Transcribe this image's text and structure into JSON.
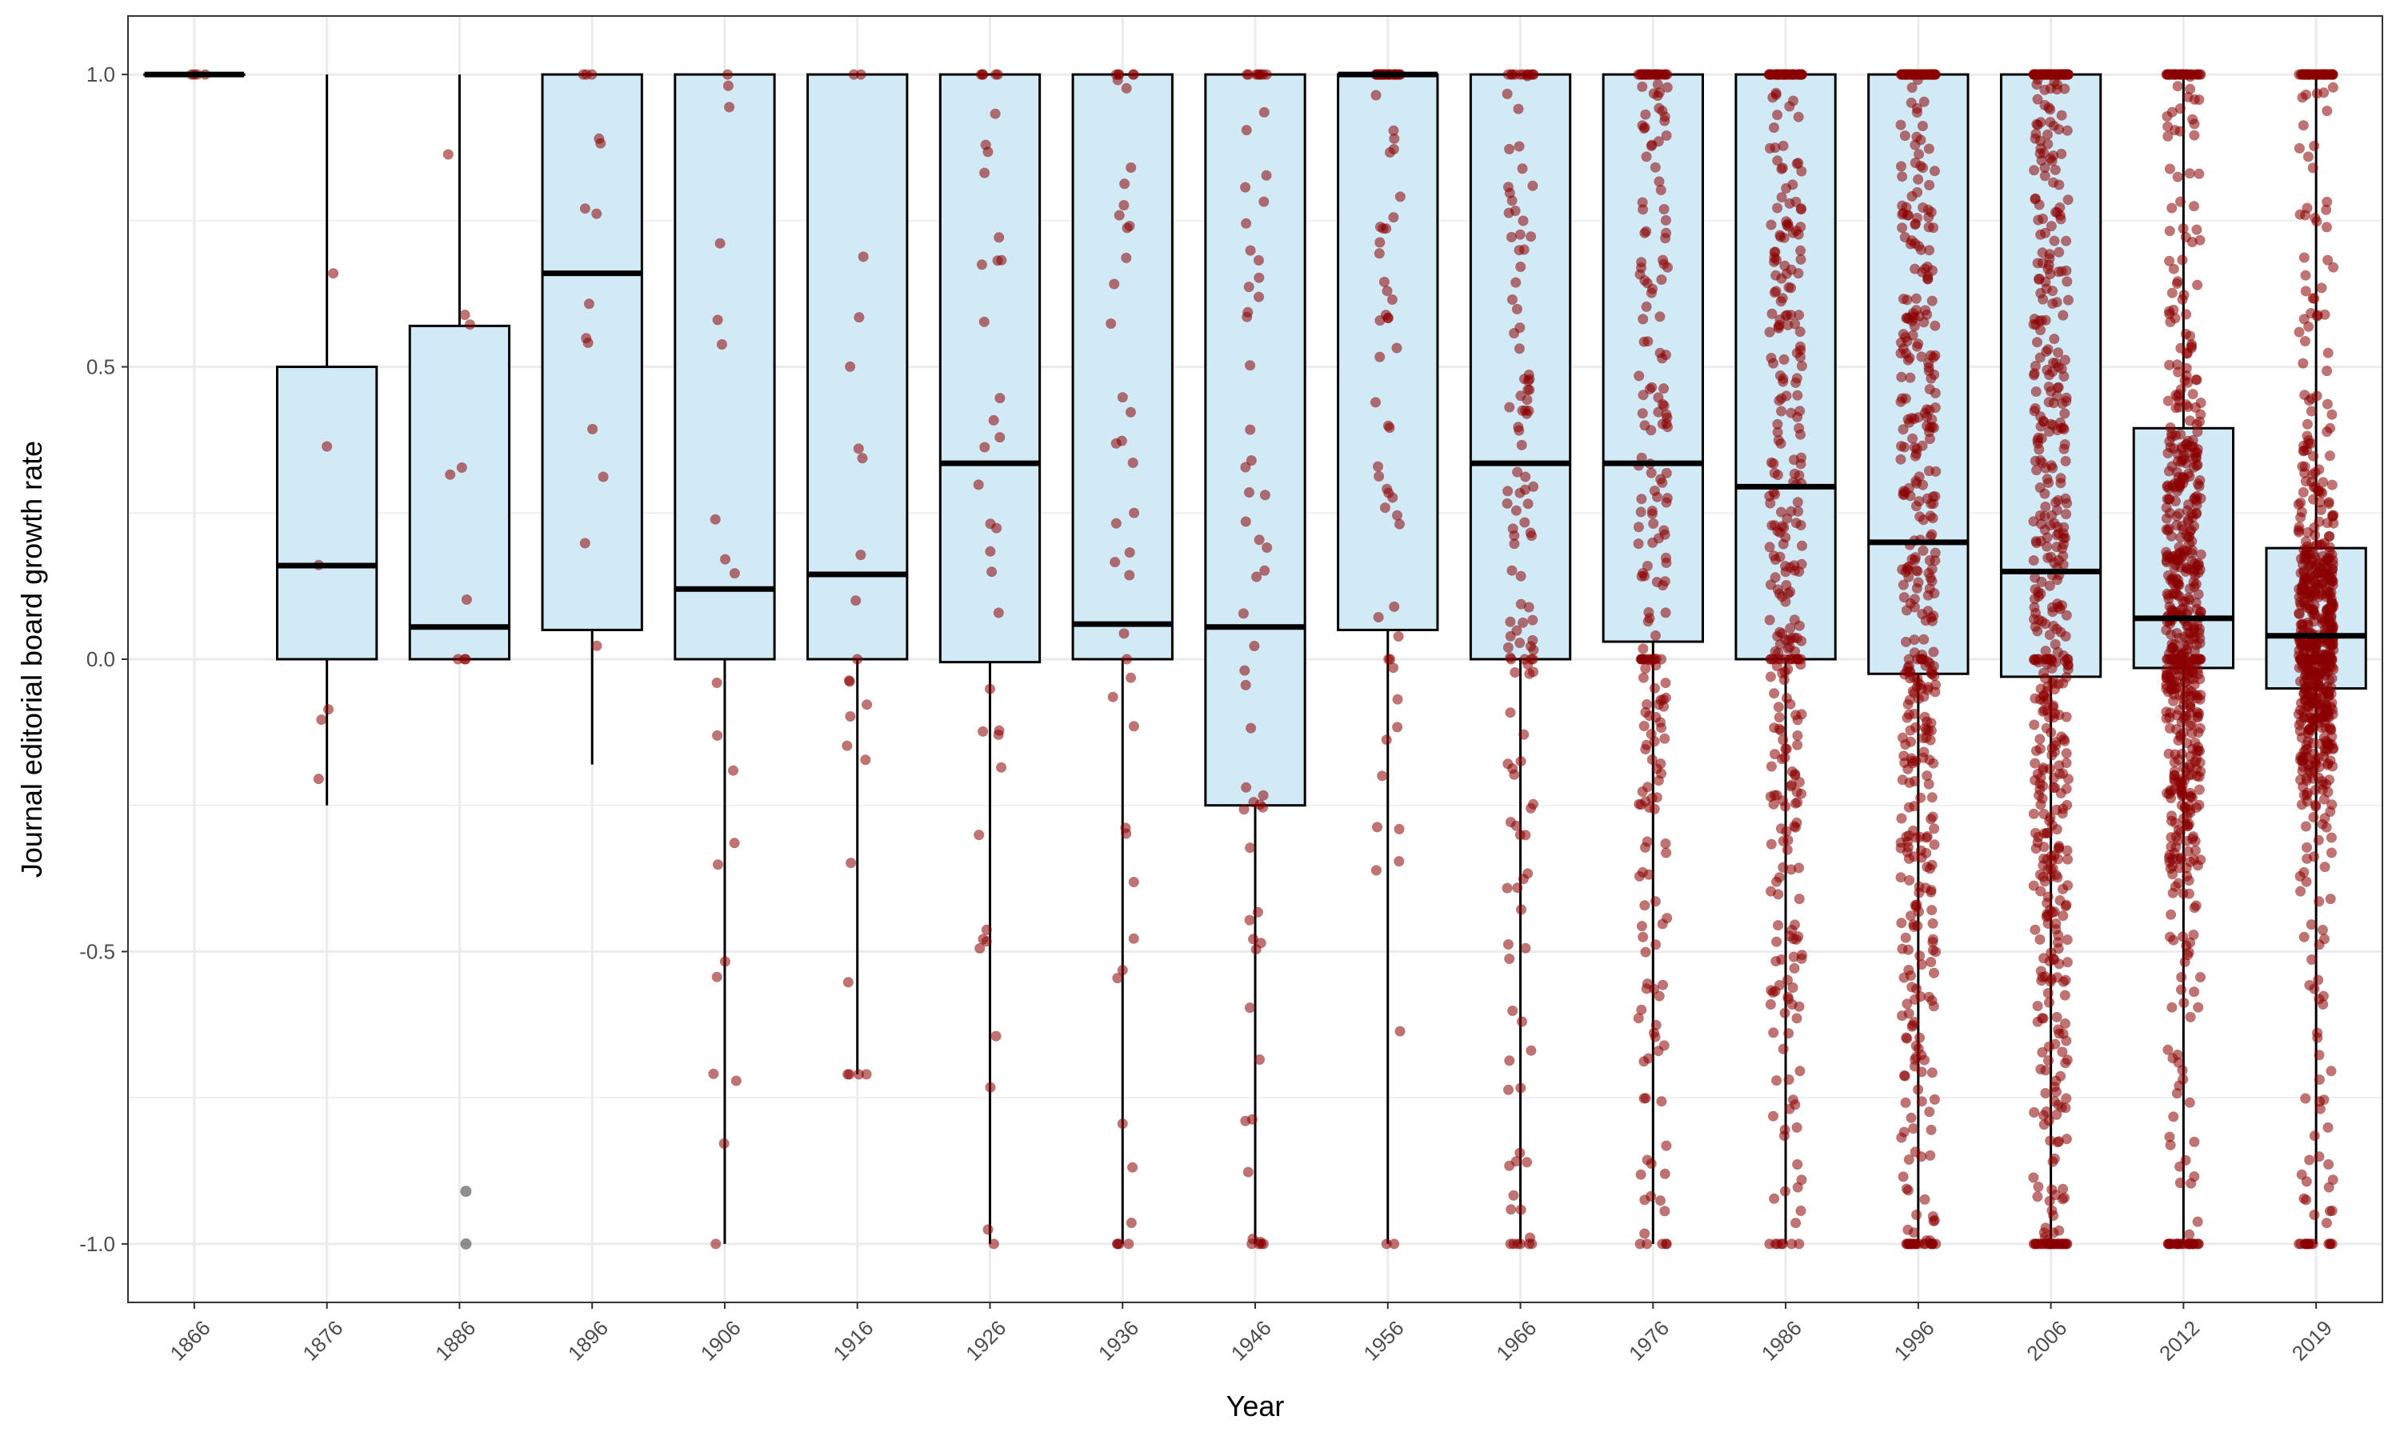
{
  "chart_data": {
    "type": "boxplot",
    "title": "",
    "xlabel": "Year",
    "ylabel": "Journal editorial board growth rate",
    "ylim": [
      -1.1,
      1.1
    ],
    "y_ticks": [
      1.0,
      0.5,
      0.0,
      -0.5,
      -1.0
    ],
    "y_tick_labels": [
      "1.0",
      "0.5",
      "0.0",
      "-0.5",
      "-1.0"
    ],
    "grid": true,
    "legend": "none",
    "box_fill_color": "#d2eaf6",
    "box_stroke_color": "#000000",
    "point_color": "#8b0000",
    "outlier_color": "#333333",
    "panel_border_color": "#333333",
    "grid_color": "#ebebeb",
    "categories": [
      "1866",
      "1876",
      "1886",
      "1896",
      "1906",
      "1916",
      "1926",
      "1936",
      "1946",
      "1956",
      "1966",
      "1976",
      "1986",
      "1996",
      "2006",
      "2012",
      "2019"
    ],
    "boxes": [
      {
        "year": "1866",
        "q1": 1.0,
        "median": 1.0,
        "q3": 1.0,
        "whisker_low": 1.0,
        "whisker_high": 1.0,
        "n_points": 4,
        "outliers": []
      },
      {
        "year": "1876",
        "q1": 0.0,
        "median": 0.16,
        "q3": 0.5,
        "whisker_low": -0.25,
        "whisker_high": 1.0,
        "n_points": 6,
        "outliers": []
      },
      {
        "year": "1886",
        "q1": 0.0,
        "median": 0.055,
        "q3": 0.57,
        "whisker_low": 0.0,
        "whisker_high": 1.0,
        "n_points": 9,
        "outliers": [
          -0.91,
          -1.0
        ]
      },
      {
        "year": "1896",
        "q1": 0.05,
        "median": 0.66,
        "q3": 1.0,
        "whisker_low": -0.18,
        "whisker_high": 1.0,
        "n_points": 14,
        "outliers": []
      },
      {
        "year": "1906",
        "q1": 0.0,
        "median": 0.12,
        "q3": 1.0,
        "whisker_low": -1.0,
        "whisker_high": 1.0,
        "n_points": 20,
        "outliers": []
      },
      {
        "year": "1916",
        "q1": 0.0,
        "median": 0.145,
        "q3": 1.0,
        "whisker_low": -0.71,
        "whisker_high": 1.0,
        "n_points": 22,
        "outliers": []
      },
      {
        "year": "1926",
        "q1": -0.005,
        "median": 0.335,
        "q3": 1.0,
        "whisker_low": -1.0,
        "whisker_high": 1.0,
        "n_points": 38,
        "outliers": []
      },
      {
        "year": "1936",
        "q1": 0.0,
        "median": 0.06,
        "q3": 1.0,
        "whisker_low": -1.0,
        "whisker_high": 1.0,
        "n_points": 44,
        "outliers": []
      },
      {
        "year": "1946",
        "q1": -0.25,
        "median": 0.055,
        "q3": 1.0,
        "whisker_low": -1.0,
        "whisker_high": 1.0,
        "n_points": 60,
        "outliers": []
      },
      {
        "year": "1956",
        "q1": 0.05,
        "median": 1.0,
        "q3": 1.0,
        "whisker_low": -1.0,
        "whisker_high": 1.0,
        "n_points": 80,
        "outliers": []
      },
      {
        "year": "1966",
        "q1": 0.0,
        "median": 0.335,
        "q3": 1.0,
        "whisker_low": -1.0,
        "whisker_high": 1.0,
        "n_points": 130,
        "outliers": []
      },
      {
        "year": "1976",
        "q1": 0.03,
        "median": 0.335,
        "q3": 1.0,
        "whisker_low": -1.0,
        "whisker_high": 1.0,
        "n_points": 230,
        "outliers": []
      },
      {
        "year": "1986",
        "q1": 0.0,
        "median": 0.295,
        "q3": 1.0,
        "whisker_low": -1.0,
        "whisker_high": 1.0,
        "n_points": 340,
        "outliers": []
      },
      {
        "year": "1996",
        "q1": -0.025,
        "median": 0.2,
        "q3": 1.0,
        "whisker_low": -1.0,
        "whisker_high": 1.0,
        "n_points": 460,
        "outliers": []
      },
      {
        "year": "2006",
        "q1": -0.03,
        "median": 0.15,
        "q3": 1.0,
        "whisker_low": -1.0,
        "whisker_high": 1.0,
        "n_points": 560,
        "outliers": []
      },
      {
        "year": "2012",
        "q1": -0.015,
        "median": 0.07,
        "q3": 0.395,
        "whisker_low": -1.0,
        "whisker_high": 1.0,
        "n_points": 640,
        "outliers": []
      },
      {
        "year": "2019",
        "q1": -0.05,
        "median": 0.04,
        "q3": 0.19,
        "whisker_low": -1.0,
        "whisker_high": 1.0,
        "n_points": 700,
        "outliers": []
      }
    ]
  }
}
